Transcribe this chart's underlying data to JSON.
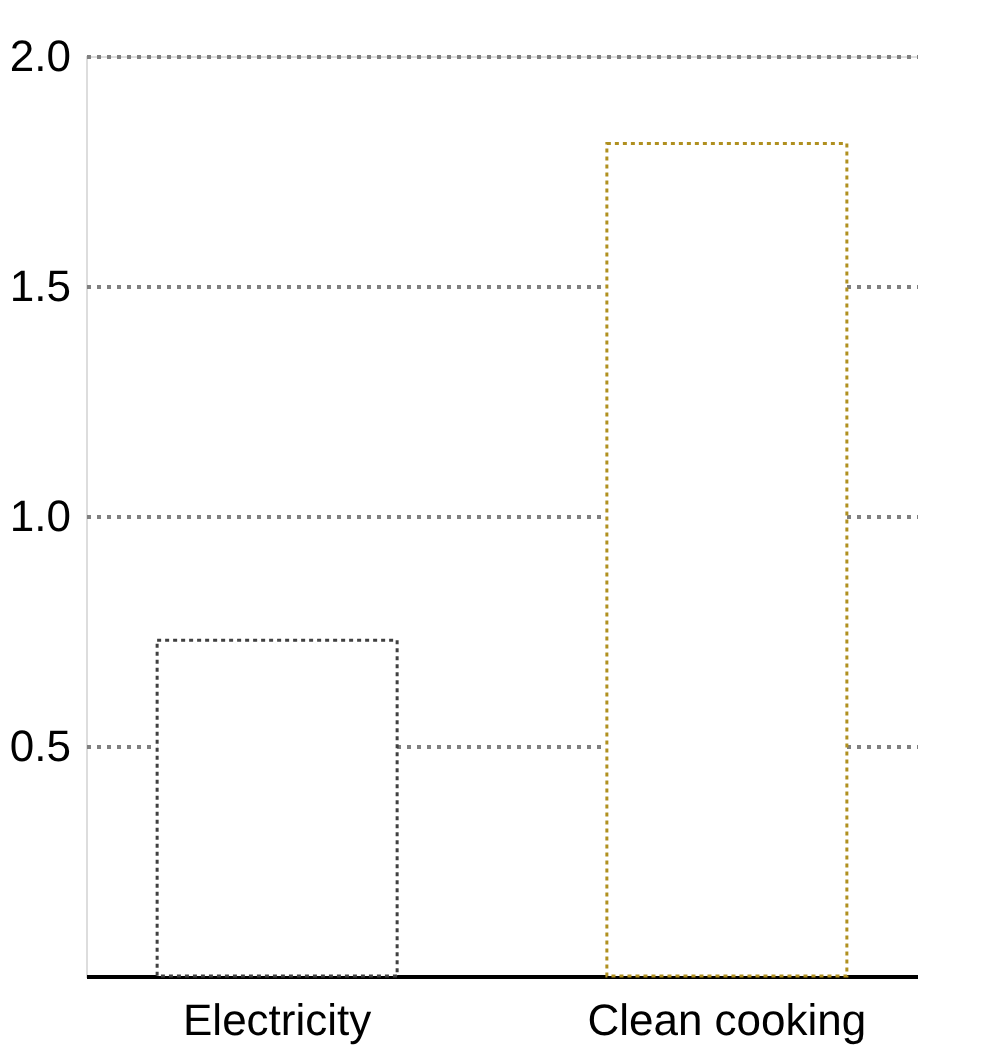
{
  "chart_data": {
    "type": "bar",
    "categories": [
      "Electricity",
      "Clean cooking"
    ],
    "values": [
      0.73,
      1.81
    ],
    "colors": [
      "#404040",
      "#b09020"
    ],
    "ylim": [
      0,
      2
    ],
    "yticks": [
      {
        "value": 0.5,
        "label": "0.5"
      },
      {
        "value": 1,
        "label": "1.0"
      },
      {
        "value": 1.5,
        "label": "1.5"
      },
      {
        "value": 2,
        "label": "2.0"
      }
    ],
    "grid": "y",
    "legend": false
  }
}
